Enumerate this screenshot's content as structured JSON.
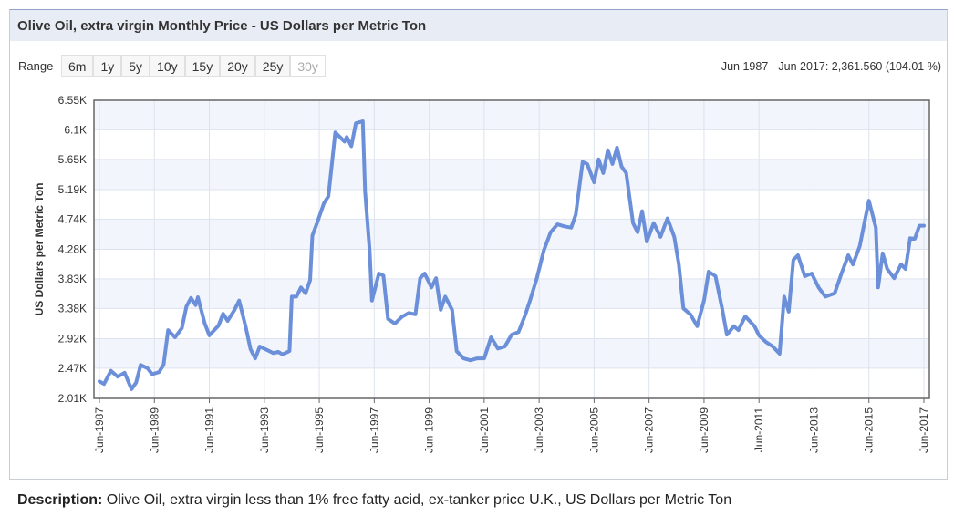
{
  "header": {
    "title": "Olive Oil, extra virgin Monthly Price - US Dollars per Metric Ton"
  },
  "range": {
    "label": "Range",
    "buttons": [
      "6m",
      "1y",
      "5y",
      "10y",
      "15y",
      "20y",
      "25y",
      "30y"
    ],
    "disabled_index": 7
  },
  "summary": "Jun 1987 - Jun 2017: 2,361.560 (104.01 %)",
  "description": {
    "label": "Description:",
    "text": "Olive Oil, extra virgin less than 1% free fatty acid, ex-tanker price U.K., US Dollars per Metric Ton"
  },
  "chart_data": {
    "type": "line",
    "y_label": "US Dollars per Metric Ton",
    "color": "#6b8fd9",
    "grid": true,
    "ylim": [
      2010,
      6550
    ],
    "yticks": [
      {
        "value": 2010,
        "label": "2.01K"
      },
      {
        "value": 2470,
        "label": "2.47K"
      },
      {
        "value": 2920,
        "label": "2.92K"
      },
      {
        "value": 3380,
        "label": "3.38K"
      },
      {
        "value": 3830,
        "label": "3.83K"
      },
      {
        "value": 4280,
        "label": "4.28K"
      },
      {
        "value": 4740,
        "label": "4.74K"
      },
      {
        "value": 5190,
        "label": "5.19K"
      },
      {
        "value": 5650,
        "label": "5.65K"
      },
      {
        "value": 6100,
        "label": "6.1K"
      },
      {
        "value": 6550,
        "label": "6.55K"
      }
    ],
    "xlim": [
      "1987-06",
      "2017-06"
    ],
    "xticks": [
      {
        "value": "1987-06",
        "label": "Jun-1987"
      },
      {
        "value": "1989-06",
        "label": "Jun-1989"
      },
      {
        "value": "1991-06",
        "label": "Jun-1991"
      },
      {
        "value": "1993-06",
        "label": "Jun-1993"
      },
      {
        "value": "1995-06",
        "label": "Jun-1995"
      },
      {
        "value": "1997-06",
        "label": "Jun-1997"
      },
      {
        "value": "1999-06",
        "label": "Jun-1999"
      },
      {
        "value": "2001-06",
        "label": "Jun-2001"
      },
      {
        "value": "2003-06",
        "label": "Jun-2003"
      },
      {
        "value": "2005-06",
        "label": "Jun-2005"
      },
      {
        "value": "2007-06",
        "label": "Jun-2007"
      },
      {
        "value": "2009-06",
        "label": "Jun-2009"
      },
      {
        "value": "2011-06",
        "label": "Jun-2011"
      },
      {
        "value": "2013-06",
        "label": "Jun-2013"
      },
      {
        "value": "2015-06",
        "label": "Jun-2015"
      },
      {
        "value": "2017-06",
        "label": "Jun-2017"
      }
    ],
    "x": [
      "1987-06",
      "1987-08",
      "1987-11",
      "1988-02",
      "1988-05",
      "1988-08",
      "1988-10",
      "1988-12",
      "1989-03",
      "1989-05",
      "1989-08",
      "1989-10",
      "1989-12",
      "1990-03",
      "1990-06",
      "1990-08",
      "1990-10",
      "1990-12",
      "1991-01",
      "1991-04",
      "1991-06",
      "1991-10",
      "1991-12",
      "1992-02",
      "1992-05",
      "1992-07",
      "1992-10",
      "1992-12",
      "1993-02",
      "1993-04",
      "1993-07",
      "1993-10",
      "1993-12",
      "1994-02",
      "1994-05",
      "1994-06",
      "1994-08",
      "1994-10",
      "1994-12",
      "1995-02",
      "1995-03",
      "1995-05",
      "1995-08",
      "1995-10",
      "1996-01",
      "1996-03",
      "1996-05",
      "1996-06",
      "1996-08",
      "1996-10",
      "1997-01",
      "1997-02",
      "1997-04",
      "1997-05",
      "1997-08",
      "1997-10",
      "1997-12",
      "1998-03",
      "1998-06",
      "1998-09",
      "1998-12",
      "1999-02",
      "1999-04",
      "1999-07",
      "1999-09",
      "1999-11",
      "2000-01",
      "2000-04",
      "2000-06",
      "2000-09",
      "2000-12",
      "2001-03",
      "2001-06",
      "2001-09",
      "2001-12",
      "2002-03",
      "2002-06",
      "2002-09",
      "2002-12",
      "2003-02",
      "2003-05",
      "2003-08",
      "2003-11",
      "2004-02",
      "2004-05",
      "2004-08",
      "2004-10",
      "2005-01",
      "2005-03",
      "2005-06",
      "2005-08",
      "2005-10",
      "2005-12",
      "2006-02",
      "2006-04",
      "2006-06",
      "2006-08",
      "2006-11",
      "2007-01",
      "2007-03",
      "2007-05",
      "2007-08",
      "2007-11",
      "2008-02",
      "2008-05",
      "2008-07",
      "2008-09",
      "2008-12",
      "2009-03",
      "2009-06",
      "2009-08",
      "2009-11",
      "2010-02",
      "2010-04",
      "2010-07",
      "2010-09",
      "2010-12",
      "2011-04",
      "2011-06",
      "2011-09",
      "2011-12",
      "2012-03",
      "2012-05",
      "2012-07",
      "2012-09",
      "2012-11",
      "2013-02",
      "2013-05",
      "2013-08",
      "2013-11",
      "2014-03",
      "2014-06",
      "2014-09",
      "2014-11",
      "2015-02",
      "2015-04",
      "2015-06",
      "2015-09",
      "2015-10",
      "2015-12",
      "2016-02",
      "2016-05",
      "2016-08",
      "2016-10",
      "2016-12",
      "2017-02",
      "2017-04",
      "2017-06"
    ],
    "values": [
      2270,
      2230,
      2430,
      2340,
      2400,
      2150,
      2250,
      2520,
      2470,
      2380,
      2410,
      2520,
      3050,
      2940,
      3080,
      3410,
      3540,
      3430,
      3550,
      3150,
      2970,
      3120,
      3300,
      3190,
      3360,
      3500,
      3080,
      2760,
      2620,
      2800,
      2750,
      2700,
      2720,
      2680,
      2730,
      3560,
      3560,
      3700,
      3610,
      3810,
      4490,
      4680,
      4980,
      5090,
      6060,
      5990,
      5920,
      5990,
      5850,
      6200,
      6230,
      5160,
      4260,
      3500,
      3910,
      3880,
      3220,
      3150,
      3250,
      3310,
      3290,
      3840,
      3910,
      3700,
      3840,
      3360,
      3560,
      3360,
      2730,
      2620,
      2590,
      2620,
      2620,
      2940,
      2770,
      2800,
      2980,
      3020,
      3290,
      3500,
      3840,
      4260,
      4540,
      4660,
      4630,
      4610,
      4810,
      5610,
      5580,
      5300,
      5650,
      5440,
      5790,
      5580,
      5830,
      5540,
      5440,
      4680,
      4540,
      4860,
      4400,
      4680,
      4470,
      4750,
      4470,
      4050,
      3380,
      3290,
      3110,
      3500,
      3940,
      3870,
      3360,
      2980,
      3110,
      3050,
      3260,
      3110,
      2970,
      2870,
      2800,
      2690,
      3560,
      3330,
      4120,
      4190,
      3870,
      3910,
      3700,
      3560,
      3610,
      3910,
      4190,
      4050,
      4330,
      4680,
      5020,
      4610,
      3700,
      4220,
      3980,
      3840,
      4050,
      3980,
      4450,
      4440,
      4640,
      4640
    ]
  }
}
